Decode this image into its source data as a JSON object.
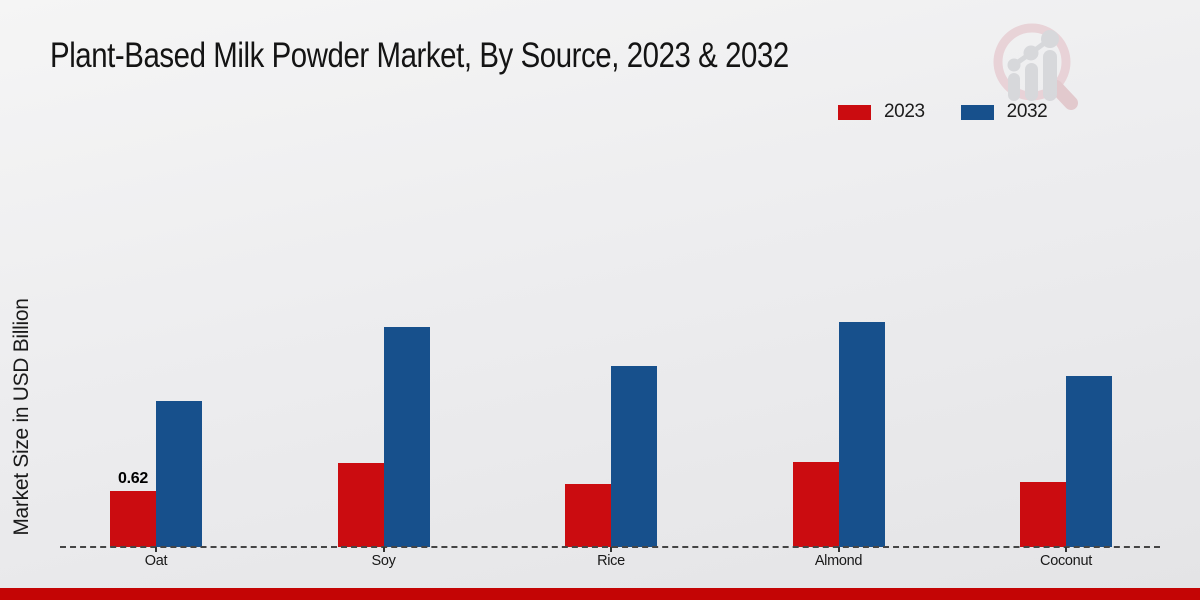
{
  "header": {
    "title": "Plant-Based Milk Powder Market, By Source, 2023 & 2032"
  },
  "y_axis": {
    "label": "Market Size in USD Billion"
  },
  "brand": {
    "logo_icon": "magnifier-bar-chart-icon",
    "footer_color": "#c40505",
    "logo_ring_color": "#e7ced3",
    "logo_bar_color": "#d3d4d8"
  },
  "chart_data": {
    "type": "bar",
    "title": "Plant-Based Milk Powder Market, By Source, 2023 & 2032",
    "xlabel": "",
    "ylabel": "Market Size in USD Billion",
    "categories": [
      "Oat",
      "Soy",
      "Rice",
      "Almond",
      "Coconut"
    ],
    "series": [
      {
        "name": "2023",
        "color": "#cb0c10",
        "values": [
          0.62,
          0.93,
          0.7,
          0.94,
          0.72
        ]
      },
      {
        "name": "2032",
        "color": "#17508c",
        "values": [
          1.62,
          2.44,
          2.01,
          2.5,
          1.9
        ]
      }
    ],
    "data_labels": [
      {
        "series": "2023",
        "category": "Oat",
        "text": "0.62"
      }
    ],
    "ylim": [
      0,
      2.6
    ],
    "grid": false,
    "legend_position": "top-right",
    "baseline_style": "dashed"
  }
}
